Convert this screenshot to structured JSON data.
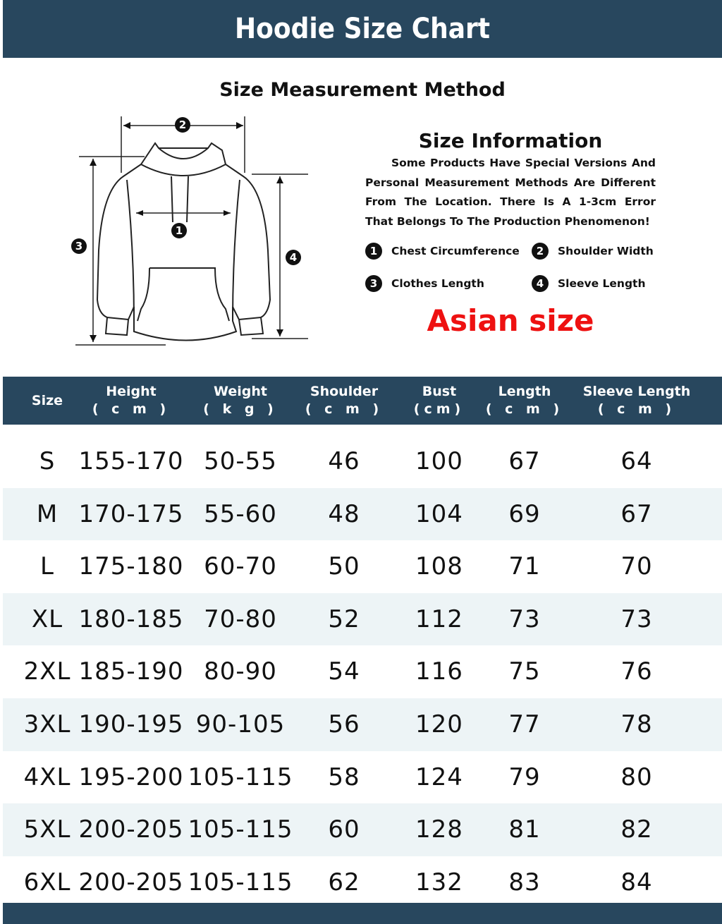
{
  "title": "Hoodie Size Chart",
  "method_title": "Size Measurement Method",
  "info": {
    "title": "Size Information",
    "text": "Some Products Have Special Versions And Personal Measurement Methods Are Different From The Location. There Is A 1-3cm Error That Belongs To The Production Phenomenon!",
    "legend": [
      {
        "num": "1",
        "label": "Chest Circumference"
      },
      {
        "num": "2",
        "label": "Shoulder Width"
      },
      {
        "num": "3",
        "label": "Clothes Length"
      },
      {
        "num": "4",
        "label": "Sleeve Length"
      }
    ],
    "region": "Asian size",
    "region_color": "#ee1111"
  },
  "diagram": {
    "markers": [
      "1",
      "2",
      "3",
      "4"
    ]
  },
  "colors": {
    "header": "#28475e",
    "row_alt": "#edf4f6"
  },
  "table": {
    "headers": [
      {
        "label": "Size",
        "unit": ""
      },
      {
        "label": "Height",
        "unit": "( c m )"
      },
      {
        "label": "Weight",
        "unit": "( k g )"
      },
      {
        "label": "Shoulder",
        "unit": "(  c   m  )"
      },
      {
        "label": "Bust",
        "unit": "(cm)"
      },
      {
        "label": "Length",
        "unit": "( c m )"
      },
      {
        "label": "Sleeve Length",
        "unit": "(    c    m    )"
      }
    ],
    "rows": [
      [
        "S",
        "155-170",
        "50-55",
        "46",
        "100",
        "67",
        "64"
      ],
      [
        "M",
        "170-175",
        "55-60",
        "48",
        "104",
        "69",
        "67"
      ],
      [
        "L",
        "175-180",
        "60-70",
        "50",
        "108",
        "71",
        "70"
      ],
      [
        "XL",
        "180-185",
        "70-80",
        "52",
        "112",
        "73",
        "73"
      ],
      [
        "2XL",
        "185-190",
        "80-90",
        "54",
        "116",
        "75",
        "76"
      ],
      [
        "3XL",
        "190-195",
        "90-105",
        "56",
        "120",
        "77",
        "78"
      ],
      [
        "4XL",
        "195-200",
        "105-115",
        "58",
        "124",
        "79",
        "80"
      ],
      [
        "5XL",
        "200-205",
        "105-115",
        "60",
        "128",
        "81",
        "82"
      ],
      [
        "6XL",
        "200-205",
        "105-115",
        "62",
        "132",
        "83",
        "84"
      ]
    ]
  }
}
